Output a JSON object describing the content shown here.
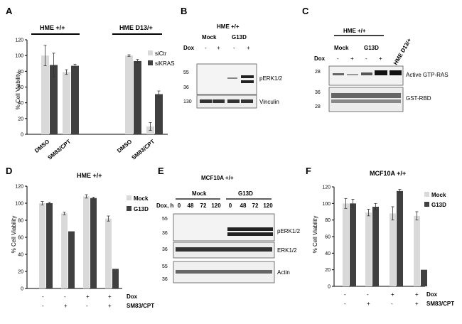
{
  "colors": {
    "light": "#d9d9d9",
    "dark": "#404040",
    "axis": "#000000"
  },
  "panels": {
    "A": {
      "letter": "A",
      "group_labels": [
        "HME +/+",
        "HME D13/+"
      ],
      "ylabel": "% Cell Viability",
      "ticks": [
        "0",
        "20",
        "40",
        "60",
        "80",
        "100",
        "120"
      ],
      "xlabels": [
        "DMSO",
        "SM83/CPT",
        "DMSO",
        "SM83/CPT"
      ],
      "legend": [
        "siCtr",
        "siKRAS"
      ]
    },
    "B": {
      "letter": "B",
      "title": "HME +/+",
      "groups": [
        "Mock",
        "G13D"
      ],
      "dox_label": "Dox",
      "dox_signs": [
        "-",
        "+",
        "-",
        "+"
      ],
      "mw_top": [
        "55",
        "36"
      ],
      "mw_bottom": [
        "130"
      ],
      "bands": [
        "pERK1/2",
        "Vinculin"
      ]
    },
    "C": {
      "letter": "C",
      "title": "HME +/+",
      "groups": [
        "Mock",
        "G13D"
      ],
      "extra_lane": "HME D13/+",
      "dox_label": "Dox",
      "dox_signs": [
        "-",
        "+",
        "-",
        "+"
      ],
      "mw_top": [
        "28"
      ],
      "mw_bottom": [
        "36",
        "28"
      ],
      "bands": [
        "Active GTP-RAS",
        "GST-RBD"
      ]
    },
    "D": {
      "letter": "D",
      "title": "HME +/+",
      "ylabel": "% Cell Viability",
      "ticks": [
        "0",
        "20",
        "40",
        "60",
        "80",
        "100",
        "120"
      ],
      "legend": [
        "Mock",
        "G13D"
      ],
      "row1_label": "Dox",
      "row2_label": "SM83/CPT",
      "row1": [
        "-",
        "-",
        "+",
        "+"
      ],
      "row2": [
        "-",
        "+",
        "-",
        "+"
      ]
    },
    "E": {
      "letter": "E",
      "title": "MCF10A +/+",
      "groups": [
        "Mock",
        "G13D"
      ],
      "time_label": "Dox, h",
      "times": [
        "0",
        "48",
        "72",
        "120",
        "0",
        "48",
        "72",
        "120"
      ],
      "mw1": [
        "55",
        "36"
      ],
      "mw2": [
        "36"
      ],
      "mw3": [
        "55",
        "36"
      ],
      "bands": [
        "pERK1/2",
        "ERK1/2",
        "Actin"
      ]
    },
    "F": {
      "letter": "F",
      "title": "MCF10A +/+",
      "ylabel": "% Cell Viability",
      "ticks": [
        "0",
        "20",
        "40",
        "60",
        "80",
        "100",
        "120"
      ],
      "legend": [
        "Mock",
        "G13D"
      ],
      "row1_label": "Dox",
      "row2_label": "SM83/CPT",
      "row1": [
        "-",
        "-",
        "+",
        "+"
      ],
      "row2": [
        "-",
        "+",
        "-",
        "+"
      ]
    }
  },
  "chart_data": [
    {
      "panel": "A",
      "type": "bar",
      "ylabel": "% Cell Viability",
      "ylim": [
        0,
        120
      ],
      "categories": [
        "DMSO",
        "SM83/CPT",
        "DMSO",
        "SM83/CPT"
      ],
      "series": [
        {
          "name": "siCtr",
          "values": [
            100,
            79,
            100,
            10
          ],
          "errors": [
            13,
            3,
            1,
            5
          ]
        },
        {
          "name": "siKRAS",
          "values": [
            88,
            87,
            93,
            51
          ],
          "errors": [
            15,
            2,
            2,
            4
          ]
        }
      ]
    },
    {
      "panel": "D",
      "type": "bar",
      "ylabel": "% Cell Viability",
      "ylim": [
        0,
        120
      ],
      "categories": [
        "-/-",
        "-/+",
        "+/-",
        "+/+"
      ],
      "series": [
        {
          "name": "Mock",
          "values": [
            100,
            88,
            108,
            82
          ],
          "errors": [
            2,
            1.5,
            2,
            3
          ]
        },
        {
          "name": "G13D",
          "values": [
            100,
            67,
            106,
            23
          ],
          "errors": [
            1,
            0,
            1,
            0
          ]
        }
      ]
    },
    {
      "panel": "F",
      "type": "bar",
      "ylabel": "% Cell Viability",
      "ylim": [
        0,
        120
      ],
      "categories": [
        "-/-",
        "-/+",
        "+/-",
        "+/+"
      ],
      "series": [
        {
          "name": "Mock",
          "values": [
            100,
            89,
            88,
            85
          ],
          "errors": [
            6,
            4,
            8,
            5
          ]
        },
        {
          "name": "G13D",
          "values": [
            100,
            96,
            115,
            20
          ],
          "errors": [
            5,
            4,
            2,
            0
          ]
        }
      ]
    }
  ]
}
